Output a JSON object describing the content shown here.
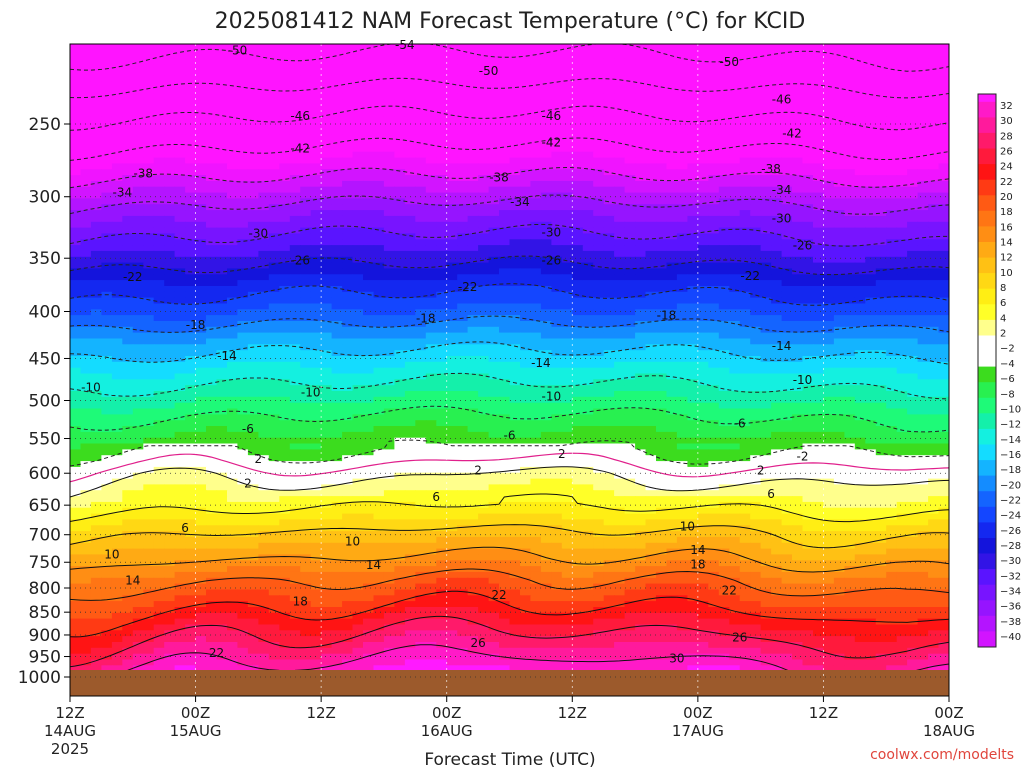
{
  "chart_data": {
    "type": "heatmap",
    "title": "2025081412 NAM Forecast Temperature (°C) for KCID",
    "xlabel": "Forecast Time (UTC)",
    "ylabel": "",
    "credit": "coolwx.com/modelts",
    "y_log_scale": true,
    "ylim": [
      1000,
      200
    ],
    "y_ticks": [
      "250",
      "300",
      "350",
      "400",
      "450",
      "500",
      "550",
      "600",
      "650",
      "700",
      "750",
      "800",
      "850",
      "900",
      "950",
      "1000"
    ],
    "y_tick_values": [
      250,
      300,
      350,
      400,
      450,
      500,
      550,
      600,
      650,
      700,
      750,
      800,
      850,
      900,
      950,
      1000
    ],
    "x_ticks": [
      {
        "l1": "12Z",
        "l2": "14AUG",
        "l3": "2025"
      },
      {
        "l1": "00Z",
        "l2": "15AUG",
        "l3": ""
      },
      {
        "l1": "12Z",
        "l2": "",
        "l3": ""
      },
      {
        "l1": "00Z",
        "l2": "16AUG",
        "l3": ""
      },
      {
        "l1": "12Z",
        "l2": "",
        "l3": ""
      },
      {
        "l1": "00Z",
        "l2": "17AUG",
        "l3": ""
      },
      {
        "l1": "12Z",
        "l2": "",
        "l3": ""
      },
      {
        "l1": "00Z",
        "l2": "18AUG",
        "l3": ""
      }
    ],
    "x_hours": [
      0,
      12,
      24,
      36,
      48,
      60,
      72,
      84
    ],
    "grid": true,
    "legend": "right",
    "colorbar_labels": [
      "32",
      "30",
      "28",
      "26",
      "24",
      "22",
      "20",
      "18",
      "16",
      "14",
      "12",
      "10",
      "8",
      "6",
      "4",
      "2",
      "−2",
      "−4",
      "−6",
      "−8",
      "−10",
      "−12",
      "−14",
      "−16",
      "−18",
      "−20",
      "−22",
      "−24",
      "−26",
      "−28",
      "−30",
      "−32",
      "−34",
      "−36",
      "−38",
      "−40"
    ],
    "levels": [
      32,
      30,
      28,
      26,
      24,
      22,
      20,
      18,
      16,
      14,
      12,
      10,
      8,
      6,
      4,
      2,
      0,
      -2,
      -4,
      -6,
      -8,
      -10,
      -12,
      -14,
      -16,
      -18,
      -20,
      -22,
      -24,
      -26,
      -28,
      -30,
      -32,
      -34,
      -36,
      -38,
      -40
    ],
    "contour_labels": [
      {
        "text": "-54",
        "hour": 32,
        "p": 205
      },
      {
        "text": "-50",
        "hour": 16,
        "p": 208
      },
      {
        "text": "-50",
        "hour": 40,
        "p": 219
      },
      {
        "text": "-50",
        "hour": 63,
        "p": 214
      },
      {
        "text": "-46",
        "hour": 22,
        "p": 245
      },
      {
        "text": "-46",
        "hour": 46,
        "p": 245
      },
      {
        "text": "-46",
        "hour": 68,
        "p": 235
      },
      {
        "text": "-42",
        "hour": 22,
        "p": 266
      },
      {
        "text": "-42",
        "hour": 46,
        "p": 262
      },
      {
        "text": "-42",
        "hour": 69,
        "p": 256
      },
      {
        "text": "-38",
        "hour": 7,
        "p": 283
      },
      {
        "text": "-38",
        "hour": 41,
        "p": 286
      },
      {
        "text": "-38",
        "hour": 67,
        "p": 280
      },
      {
        "text": "-34",
        "hour": 5,
        "p": 297
      },
      {
        "text": "-34",
        "hour": 43,
        "p": 304
      },
      {
        "text": "-34",
        "hour": 68,
        "p": 295
      },
      {
        "text": "-30",
        "hour": 18,
        "p": 329
      },
      {
        "text": "-30",
        "hour": 46,
        "p": 328
      },
      {
        "text": "-30",
        "hour": 68,
        "p": 317
      },
      {
        "text": "-26",
        "hour": 22,
        "p": 352
      },
      {
        "text": "-26",
        "hour": 46,
        "p": 352
      },
      {
        "text": "-26",
        "hour": 70,
        "p": 339
      },
      {
        "text": "-22",
        "hour": 6,
        "p": 367
      },
      {
        "text": "-22",
        "hour": 38,
        "p": 376
      },
      {
        "text": "-22",
        "hour": 65,
        "p": 366
      },
      {
        "text": "-18",
        "hour": 12,
        "p": 414
      },
      {
        "text": "-18",
        "hour": 34,
        "p": 407
      },
      {
        "text": "-18",
        "hour": 57,
        "p": 404
      },
      {
        "text": "-14",
        "hour": 15,
        "p": 447
      },
      {
        "text": "-14",
        "hour": 45,
        "p": 455
      },
      {
        "text": "-14",
        "hour": 68,
        "p": 436
      },
      {
        "text": "-10",
        "hour": 2,
        "p": 484
      },
      {
        "text": "-10",
        "hour": 23,
        "p": 490
      },
      {
        "text": "-10",
        "hour": 46,
        "p": 495
      },
      {
        "text": "-10",
        "hour": 70,
        "p": 475
      },
      {
        "text": "-6",
        "hour": 17,
        "p": 537
      },
      {
        "text": "-6",
        "hour": 42,
        "p": 546
      },
      {
        "text": "-6",
        "hour": 64,
        "p": 530
      },
      {
        "text": "2",
        "hour": 18,
        "p": 579
      },
      {
        "text": "2",
        "hour": 47,
        "p": 572
      },
      {
        "text": "-2",
        "hour": 70,
        "p": 575
      },
      {
        "text": "2",
        "hour": 17,
        "p": 616
      },
      {
        "text": "2",
        "hour": 39,
        "p": 596
      },
      {
        "text": "2",
        "hour": 66,
        "p": 596
      },
      {
        "text": "6",
        "hour": 11,
        "p": 688
      },
      {
        "text": "6",
        "hour": 35,
        "p": 637
      },
      {
        "text": "6",
        "hour": 67,
        "p": 632
      },
      {
        "text": "10",
        "hour": 4,
        "p": 736
      },
      {
        "text": "10",
        "hour": 27,
        "p": 712
      },
      {
        "text": "10",
        "hour": 59,
        "p": 686
      },
      {
        "text": "14",
        "hour": 6,
        "p": 785
      },
      {
        "text": "14",
        "hour": 29,
        "p": 755
      },
      {
        "text": "14",
        "hour": 60,
        "p": 727
      },
      {
        "text": "18",
        "hour": 22,
        "p": 828
      },
      {
        "text": "18",
        "hour": 60,
        "p": 754
      },
      {
        "text": "22",
        "hour": 14,
        "p": 942
      },
      {
        "text": "22",
        "hour": 41,
        "p": 814
      },
      {
        "text": "22",
        "hour": 63,
        "p": 805
      },
      {
        "text": "26",
        "hour": 39,
        "p": 918
      },
      {
        "text": "26",
        "hour": 64,
        "p": 906
      },
      {
        "text": "30",
        "hour": 58,
        "p": 955
      }
    ]
  }
}
